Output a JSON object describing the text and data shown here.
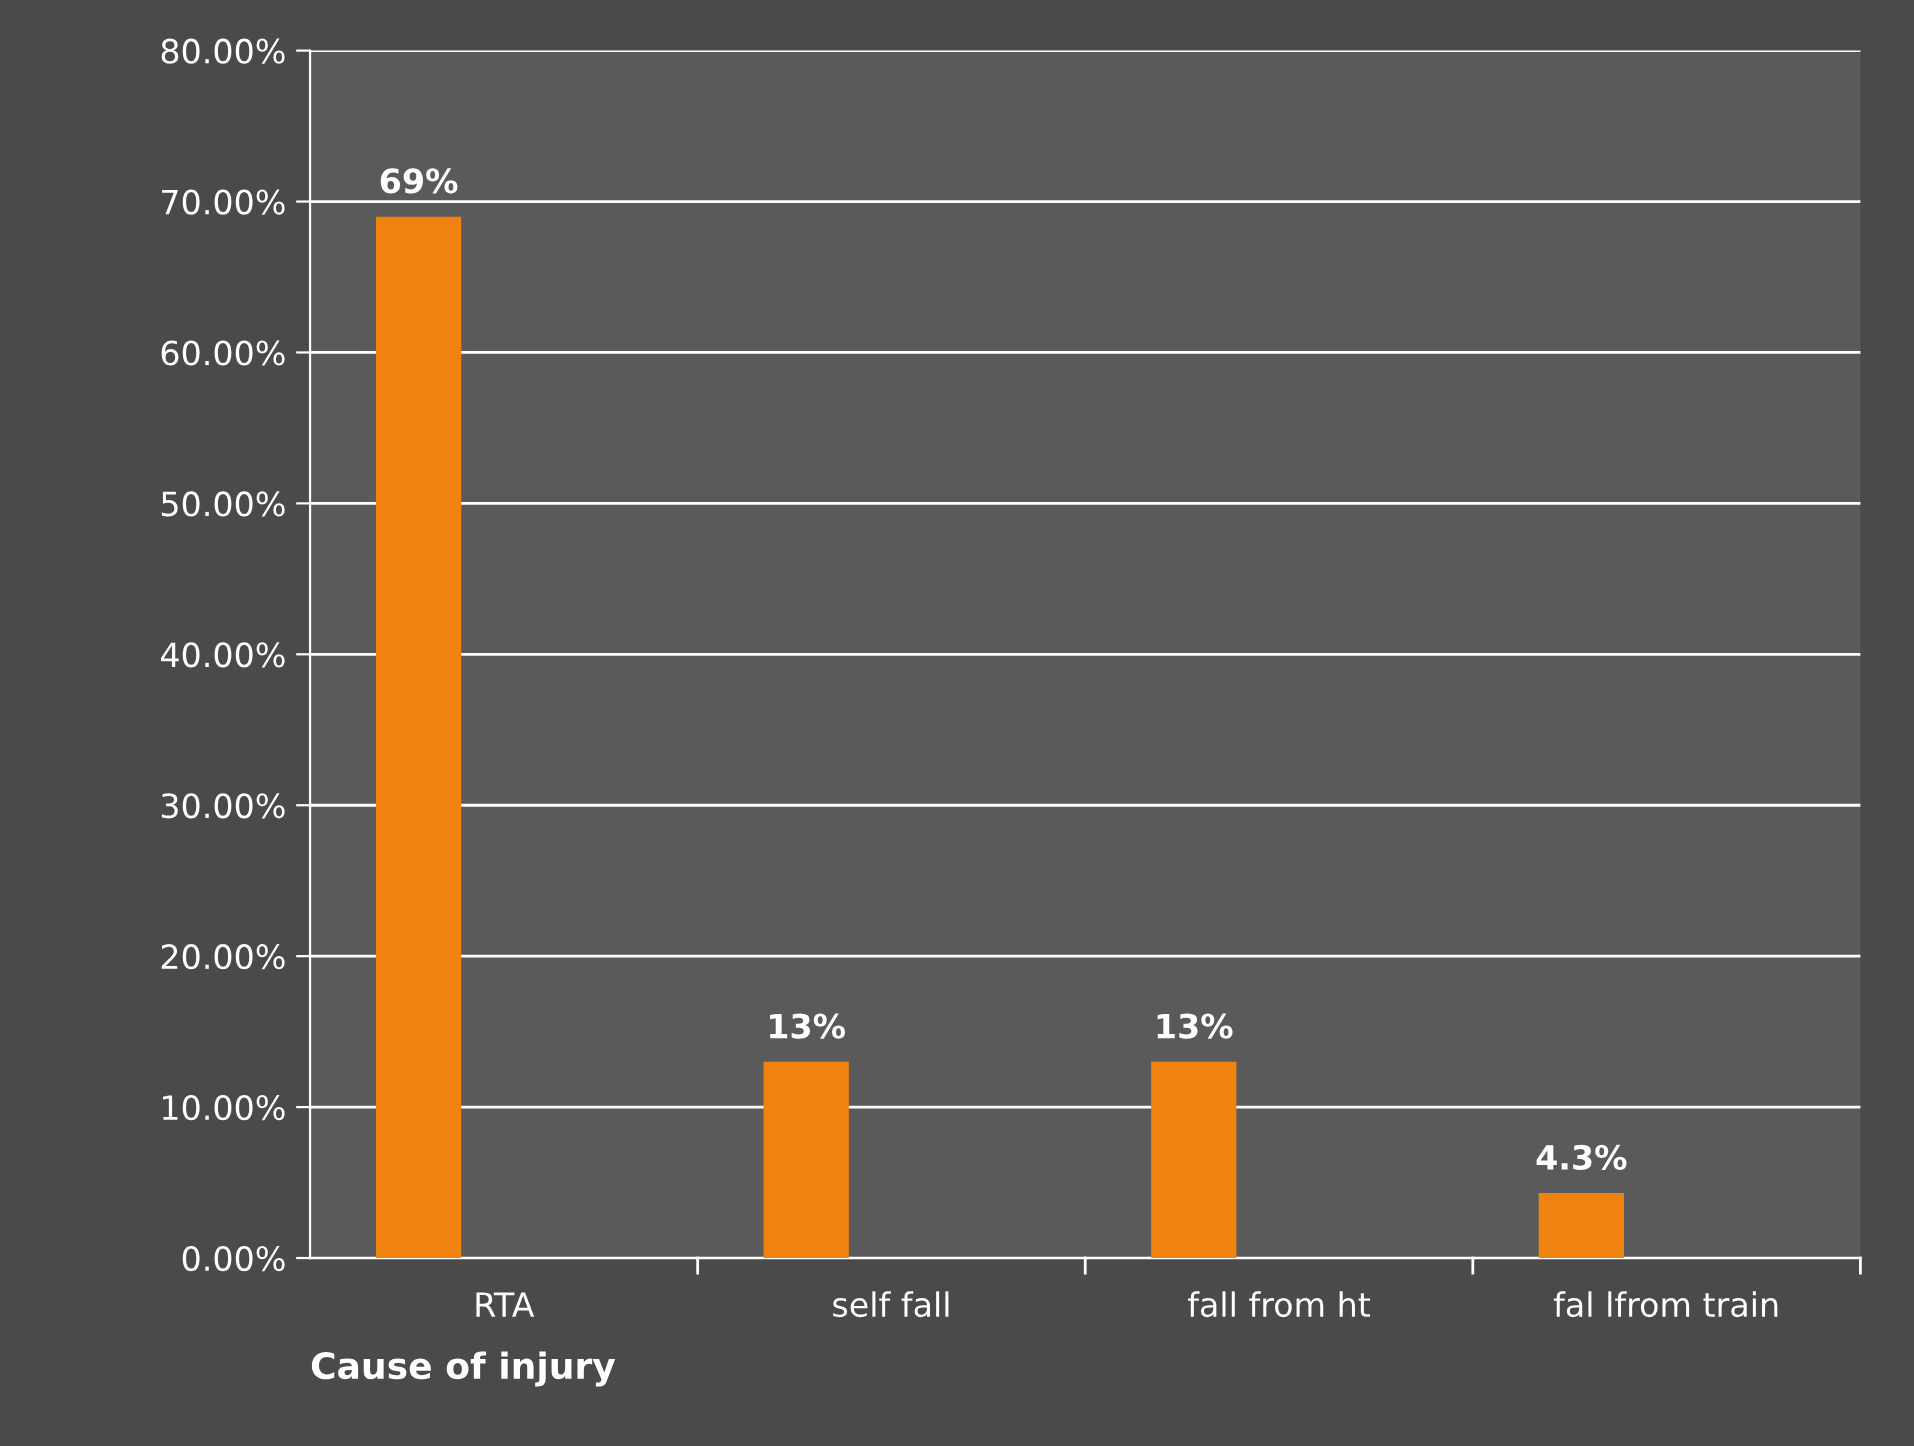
{
  "chart_data": {
    "type": "bar",
    "xlabel": "Cause of injury",
    "categories": [
      "RTA",
      "self fall",
      "fall from ht",
      "fal lfrom train"
    ],
    "values": [
      69,
      13,
      13,
      4.3
    ],
    "value_labels": [
      "69%",
      "13%",
      "13%",
      "4.3%"
    ],
    "color": "#f0820f",
    "ylim": [
      0,
      80
    ],
    "yticks": [
      {
        "value": 0,
        "label": "0.00%"
      },
      {
        "value": 10,
        "label": "10.00%"
      },
      {
        "value": 20,
        "label": "20.00%"
      },
      {
        "value": 30,
        "label": "30.00%"
      },
      {
        "value": 40,
        "label": "40.00%"
      },
      {
        "value": 50,
        "label": "50.00%"
      },
      {
        "value": 60,
        "label": "60.00%"
      },
      {
        "value": 70,
        "label": "70.00%"
      },
      {
        "value": 80,
        "label": "80.00%"
      }
    ],
    "grid": "y"
  }
}
